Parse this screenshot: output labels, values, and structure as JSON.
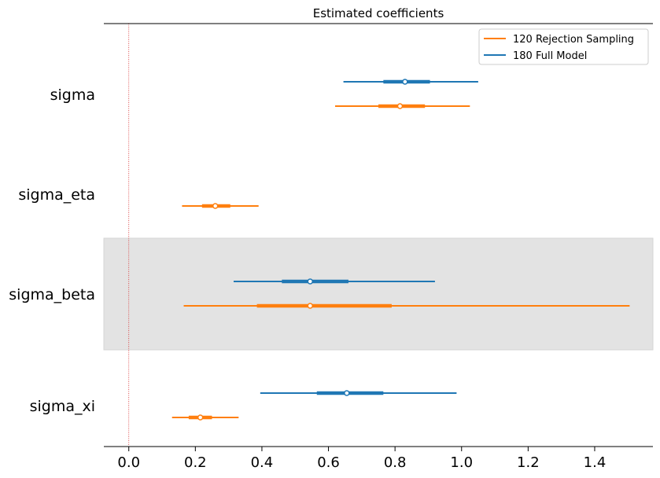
{
  "chart_data": {
    "type": "forest",
    "title": "Estimated coefficients",
    "xlabel": "",
    "ylabel": "",
    "xlim": [
      -0.075,
      1.575
    ],
    "xticks": [
      "0.0",
      "0.2",
      "0.4",
      "0.6",
      "0.8",
      "1.0",
      "1.2",
      "1.4"
    ],
    "xtick_values": [
      0.0,
      0.2,
      0.4,
      0.6,
      0.8,
      1.0,
      1.2,
      1.4
    ],
    "reference_line": 0.0,
    "reference_color": "#d62728",
    "shaded_rows": [
      "sigma_beta"
    ],
    "shade_color": "#e3e3e3",
    "legend_position": "top-right",
    "categories": [
      "sigma",
      "sigma_eta",
      "sigma_beta",
      "sigma_xi"
    ],
    "series": [
      {
        "name": "180 Full Model",
        "color": "#1f77b4",
        "estimates": [
          {
            "param": "sigma",
            "hdi_low": 0.645,
            "iqr_low": 0.765,
            "median": 0.83,
            "iqr_high": 0.905,
            "hdi_high": 1.05
          },
          {
            "param": "sigma_beta",
            "hdi_low": 0.315,
            "iqr_low": 0.46,
            "median": 0.545,
            "iqr_high": 0.66,
            "hdi_high": 0.92
          },
          {
            "param": "sigma_xi",
            "hdi_low": 0.395,
            "iqr_low": 0.565,
            "median": 0.655,
            "iqr_high": 0.765,
            "hdi_high": 0.985
          }
        ]
      },
      {
        "name": "120 Rejection Sampling",
        "color": "#ff7f0e",
        "estimates": [
          {
            "param": "sigma",
            "hdi_low": 0.62,
            "iqr_low": 0.75,
            "median": 0.815,
            "iqr_high": 0.89,
            "hdi_high": 1.025
          },
          {
            "param": "sigma_eta",
            "hdi_low": 0.16,
            "iqr_low": 0.22,
            "median": 0.26,
            "iqr_high": 0.305,
            "hdi_high": 0.39
          },
          {
            "param": "sigma_beta",
            "hdi_low": 0.165,
            "iqr_low": 0.385,
            "median": 0.545,
            "iqr_high": 0.79,
            "hdi_high": 1.505
          },
          {
            "param": "sigma_xi",
            "hdi_low": 0.13,
            "iqr_low": 0.18,
            "median": 0.215,
            "iqr_high": 0.25,
            "hdi_high": 0.33
          }
        ]
      }
    ],
    "legend_order": [
      "120 Rejection Sampling",
      "180 Full Model"
    ]
  }
}
